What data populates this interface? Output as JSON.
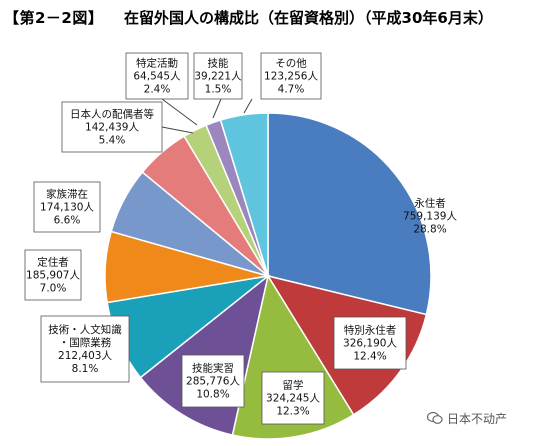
{
  "header": {
    "figure_id": "【第2－2図】",
    "title": "在留外国人の構成比（在留資格別）（平成30年6月末）"
  },
  "watermark": {
    "text": "日本不动产",
    "icon": "wechat-icon"
  },
  "chart_data": {
    "type": "pie",
    "title": "在留外国人の構成比（在留資格別）（平成30年6月末）",
    "start_angle_deg": 0,
    "direction": "clockwise",
    "slices": [
      {
        "name": "永住者",
        "count": "759,139人",
        "percent": "28.8%",
        "value": 28.8,
        "color": "#4a7dc0"
      },
      {
        "name": "特別永住者",
        "count": "326,190人",
        "percent": "12.4%",
        "value": 12.4,
        "color": "#bf3a3a"
      },
      {
        "name": "留学",
        "count": "324,245人",
        "percent": "12.3%",
        "value": 12.3,
        "color": "#95bb3f"
      },
      {
        "name": "技能実習",
        "count": "285,776人",
        "percent": "10.8%",
        "value": 10.8,
        "color": "#6e5096"
      },
      {
        "name": "技術・人文知識・国際業務",
        "name_lines": [
          "技術・人文知識",
          "・国際業務"
        ],
        "count": "212,403人",
        "percent": "8.1%",
        "value": 8.1,
        "color": "#1aa0b9"
      },
      {
        "name": "定住者",
        "count": "185,907人",
        "percent": "7.0%",
        "value": 7.0,
        "color": "#ef8a1a"
      },
      {
        "name": "家族滞在",
        "count": "174,130人",
        "percent": "6.6%",
        "value": 6.6,
        "color": "#7898cb"
      },
      {
        "name": "日本人の配偶者等",
        "count": "142,439人",
        "percent": "5.4%",
        "value": 5.4,
        "color": "#e37c7b"
      },
      {
        "name": "特定活動",
        "count": "64,545人",
        "percent": "2.4%",
        "value": 2.4,
        "color": "#b5d27a"
      },
      {
        "name": "技能",
        "count": "39,221人",
        "percent": "1.5%",
        "value": 1.5,
        "color": "#9b86bd"
      },
      {
        "name": "その他",
        "count": "123,256人",
        "percent": "4.7%",
        "value": 4.7,
        "color": "#5fc5de"
      }
    ]
  }
}
